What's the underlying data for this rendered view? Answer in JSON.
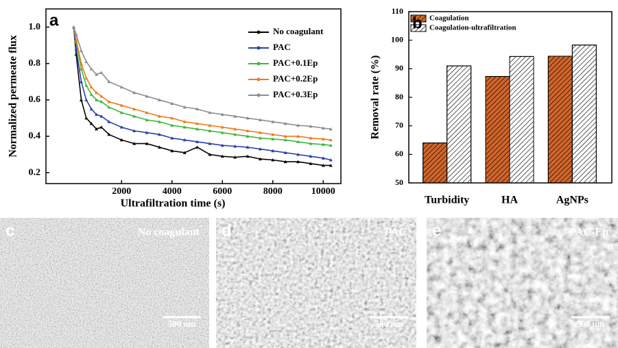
{
  "chart_data": [
    {
      "type": "line",
      "panel_label": "a",
      "xlabel": "Ultrafiltration time (s)",
      "ylabel": "Normalized permeate flux",
      "x": [
        100,
        200,
        400,
        600,
        800,
        1000,
        1200,
        1500,
        2000,
        2500,
        3000,
        3500,
        4000,
        4500,
        5000,
        5500,
        6000,
        6500,
        7000,
        7500,
        8000,
        8500,
        9000,
        9500,
        10000,
        10300
      ],
      "series": [
        {
          "name": "No coagulant",
          "color": "#000000",
          "values": [
            1.0,
            0.85,
            0.6,
            0.5,
            0.47,
            0.44,
            0.45,
            0.41,
            0.38,
            0.36,
            0.36,
            0.34,
            0.32,
            0.31,
            0.34,
            0.3,
            0.29,
            0.285,
            0.29,
            0.275,
            0.27,
            0.26,
            0.26,
            0.25,
            0.24,
            0.24
          ]
        },
        {
          "name": "PAC",
          "color": "#2b3fa8",
          "values": [
            1.0,
            0.88,
            0.7,
            0.6,
            0.55,
            0.52,
            0.51,
            0.48,
            0.45,
            0.43,
            0.42,
            0.41,
            0.39,
            0.38,
            0.37,
            0.36,
            0.35,
            0.345,
            0.34,
            0.33,
            0.32,
            0.31,
            0.3,
            0.29,
            0.28,
            0.27
          ]
        },
        {
          "name": "PAC+0.1Ep",
          "color": "#3cb83c",
          "values": [
            1.0,
            0.92,
            0.77,
            0.68,
            0.63,
            0.6,
            0.59,
            0.56,
            0.53,
            0.51,
            0.49,
            0.48,
            0.46,
            0.45,
            0.44,
            0.43,
            0.42,
            0.41,
            0.4,
            0.39,
            0.385,
            0.38,
            0.37,
            0.36,
            0.355,
            0.35
          ]
        },
        {
          "name": "PAC+0.2Ep",
          "color": "#f07a1a",
          "values": [
            1.0,
            0.93,
            0.8,
            0.72,
            0.67,
            0.64,
            0.62,
            0.59,
            0.57,
            0.55,
            0.53,
            0.51,
            0.5,
            0.48,
            0.47,
            0.46,
            0.45,
            0.44,
            0.43,
            0.42,
            0.41,
            0.4,
            0.4,
            0.39,
            0.385,
            0.38
          ]
        },
        {
          "name": "PAC+0.3Ep",
          "color": "#8c8c8c",
          "values": [
            1.0,
            0.96,
            0.87,
            0.81,
            0.77,
            0.74,
            0.75,
            0.7,
            0.67,
            0.64,
            0.62,
            0.6,
            0.58,
            0.56,
            0.55,
            0.53,
            0.52,
            0.51,
            0.5,
            0.49,
            0.48,
            0.47,
            0.46,
            0.455,
            0.445,
            0.44
          ]
        }
      ],
      "xlim": [
        -1000,
        10700
      ],
      "xticks": [
        2000,
        4000,
        6000,
        8000,
        10000
      ],
      "ylim": [
        0.14,
        1.1
      ],
      "yticks": [
        0.2,
        0.4,
        0.6,
        0.8,
        {
          "value": 1.0,
          "label": "1.0"
        }
      ],
      "legend": "upper right"
    },
    {
      "type": "bar",
      "panel_label": "b",
      "ylabel": "Removal rate (%)",
      "categories": [
        "Turbidity",
        "HA",
        "AgNPs"
      ],
      "series": [
        {
          "name": "Coagulation",
          "color": "#d2652a",
          "values": [
            64,
            87.3,
            94.4
          ]
        },
        {
          "name": "Coagulation-ultrafiltration",
          "color": "#ffffff",
          "values": [
            91,
            94.3,
            98.3
          ]
        }
      ],
      "ylim": [
        50,
        110
      ],
      "yticks": [
        50,
        60,
        70,
        80,
        90,
        100,
        110
      ],
      "legend": "upper left"
    }
  ],
  "images": [
    {
      "label": "c",
      "caption": "No coagulant",
      "scale": "500 nm"
    },
    {
      "label": "d",
      "caption": "PAC",
      "scale": "500 nm"
    },
    {
      "label": "e",
      "caption": "PAC-Ep",
      "scale": "500 nm"
    }
  ]
}
